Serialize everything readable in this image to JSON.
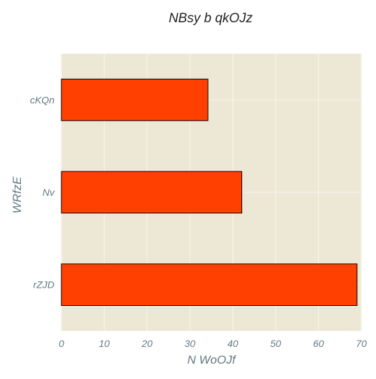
{
  "chart_data": {
    "type": "bar",
    "orientation": "horizontal",
    "title": "NBsy b qkOJz",
    "xlabel": "N WoOJf",
    "ylabel": "WRfzE",
    "categories": [
      "cKQn",
      "Nv",
      "rZJD"
    ],
    "values": [
      34.2,
      42.1,
      69.0
    ],
    "xlim": [
      0,
      70
    ],
    "xticks": [
      "0",
      "10",
      "20",
      "30",
      "40",
      "50",
      "60",
      "70"
    ],
    "grid": true,
    "colors": {
      "bar_fill": "#ff4000",
      "bar_edge": "#000000",
      "plot_background": "#ede8d6",
      "grid_line": "#f8f5ec",
      "tick_text": "#637982",
      "axis_label_text": "#637982",
      "title_text": "#222222"
    }
  }
}
